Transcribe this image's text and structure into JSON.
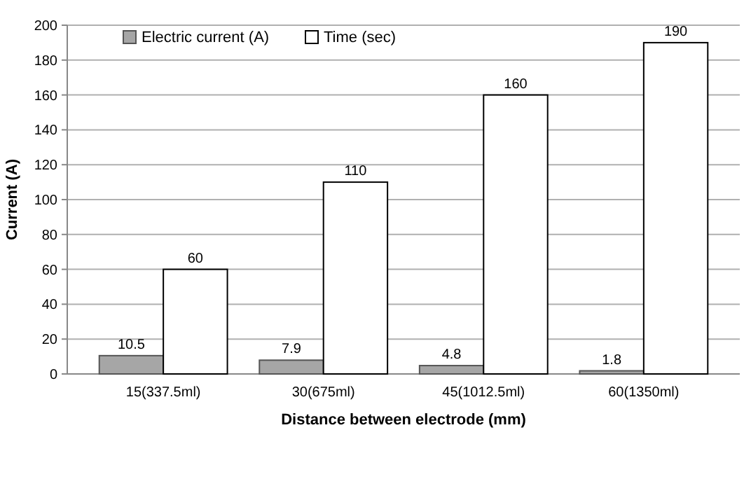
{
  "chart_data": {
    "type": "bar",
    "xlabel": "Distance between electrode (mm)",
    "ylabel": "Current (A)",
    "categories": [
      "15(337.5ml)",
      "30(675ml)",
      "45(1012.5ml)",
      "60(1350ml)"
    ],
    "series": [
      {
        "name": "Electric current (A)",
        "color": "#a6a6a6",
        "values": [
          10.5,
          7.9,
          4.8,
          1.8
        ]
      },
      {
        "name": "Time (sec)",
        "color": "#ffffff",
        "values": [
          60,
          110,
          160,
          190
        ]
      }
    ],
    "ylim": [
      0,
      200
    ],
    "yticks": [
      0,
      20,
      40,
      60,
      80,
      100,
      120,
      140,
      160,
      180,
      200
    ],
    "grid": "y",
    "legend": "top left",
    "data_labels": true
  }
}
